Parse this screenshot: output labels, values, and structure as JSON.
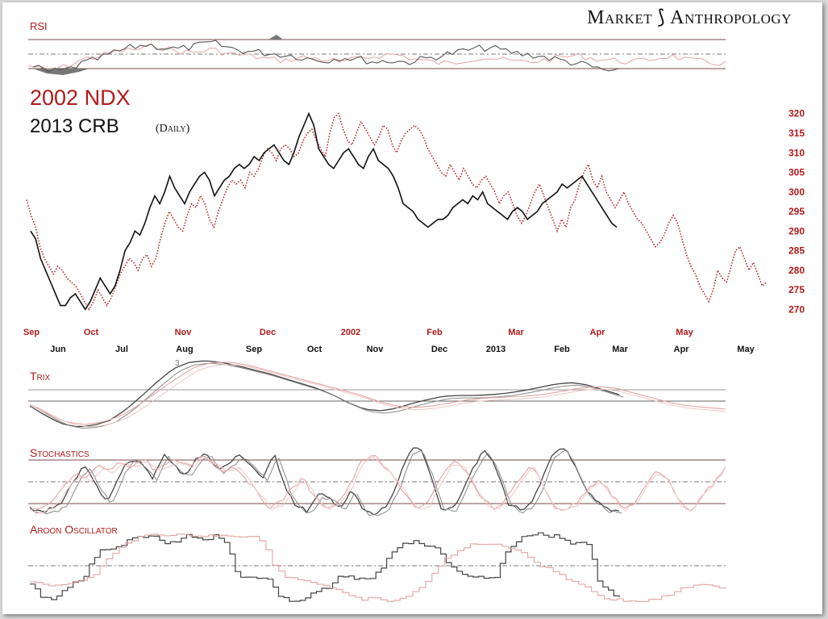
{
  "brand": {
    "left": "Market",
    "right": "Anthropology",
    "logo_icon": "dna-helix-icon"
  },
  "titles": {
    "line1": "2002 NDX",
    "line2_main": "2013 CRB",
    "line2_sub": "(Daily)"
  },
  "colors": {
    "red": "#b11a1a",
    "black": "#111111",
    "grid": "#7a4a4a",
    "lightred": "#e3a3a3",
    "gray": "#555555"
  },
  "panels": {
    "rsi": "RSI",
    "trix": "Trix",
    "stochastics": "Stochastics",
    "aroon": "Aroon Oscillator",
    "trix_marker": "3"
  },
  "chart_data": {
    "type": "line",
    "title": "2002 NDX / 2013 CRB (Daily)",
    "x_top_labels": [
      "Sep",
      "Oct",
      "Nov",
      "Dec",
      "2002",
      "Feb",
      "Mar",
      "Apr",
      "May"
    ],
    "x_bottom_labels": [
      "Jun",
      "Jul",
      "Aug",
      "Sep",
      "Oct",
      "Nov",
      "Dec",
      "2013",
      "Feb",
      "Mar",
      "Apr",
      "May"
    ],
    "y_ticks": [
      320,
      315,
      310,
      305,
      300,
      295,
      290,
      285,
      280,
      275,
      270
    ],
    "ylim": [
      267,
      322
    ],
    "series": [
      {
        "name": "2002 NDX",
        "color": "red",
        "style": "dotted",
        "values": [
          298,
          294,
          291,
          286,
          283,
          281,
          279,
          281,
          280,
          278,
          277,
          276,
          274,
          272,
          270,
          272,
          275,
          273,
          271,
          273,
          276,
          279,
          281,
          283,
          282,
          280,
          283,
          284,
          281,
          283,
          288,
          292,
          295,
          293,
          291,
          290,
          294,
          297,
          296,
          299,
          297,
          293,
          291,
          295,
          298,
          301,
          303,
          302,
          303,
          301,
          305,
          304,
          306,
          309,
          311,
          310,
          308,
          311,
          312,
          311,
          309,
          310,
          313,
          315,
          316,
          313,
          311,
          309,
          315,
          319,
          320,
          316,
          313,
          312,
          315,
          318,
          316,
          314,
          312,
          314,
          317,
          316,
          312,
          310,
          313,
          315,
          316,
          317,
          316,
          314,
          311,
          309,
          307,
          305,
          304,
          307,
          305,
          303,
          306,
          304,
          302,
          301,
          303,
          304,
          302,
          300,
          297,
          299,
          300,
          297,
          294,
          292,
          294,
          297,
          300,
          302,
          299,
          296,
          293,
          290,
          293,
          291,
          296,
          298,
          302,
          305,
          307,
          303,
          301,
          304,
          300,
          298,
          296,
          298,
          300,
          297,
          295,
          293,
          292,
          290,
          288,
          286,
          287,
          289,
          292,
          294,
          292,
          288,
          284,
          281,
          279,
          276,
          274,
          272,
          275,
          280,
          278,
          277,
          281,
          285,
          286,
          283,
          280,
          282,
          279,
          276,
          277
        ]
      },
      {
        "name": "2013 CRB",
        "color": "black",
        "style": "solid",
        "values": [
          290,
          288,
          283,
          280,
          277,
          274,
          271,
          271,
          273,
          274,
          272,
          270,
          272,
          275,
          278,
          276,
          274,
          276,
          280,
          285,
          287,
          290,
          289,
          292,
          296,
          299,
          297,
          300,
          304,
          301,
          299,
          297,
          300,
          302,
          304,
          305,
          303,
          299,
          301,
          303,
          304,
          306,
          307,
          306,
          307,
          309,
          308,
          310,
          311,
          312,
          310,
          308,
          307,
          310,
          314,
          317,
          320,
          317,
          311,
          309,
          307,
          306,
          308,
          310,
          311,
          309,
          307,
          306,
          309,
          311,
          308,
          307,
          306,
          304,
          301,
          297,
          296,
          295,
          293,
          292,
          291,
          292,
          293,
          293,
          294,
          296,
          297,
          298,
          297,
          299,
          298,
          300,
          297,
          296,
          295,
          294,
          293,
          295,
          296,
          295,
          293,
          294,
          295,
          297,
          298,
          299,
          300,
          302,
          301,
          302,
          303,
          304,
          302,
          300,
          298,
          296,
          294,
          292,
          291
        ]
      }
    ],
    "subpanels": [
      "RSI",
      "Trix",
      "Stochastics",
      "Aroon Oscillator"
    ]
  }
}
